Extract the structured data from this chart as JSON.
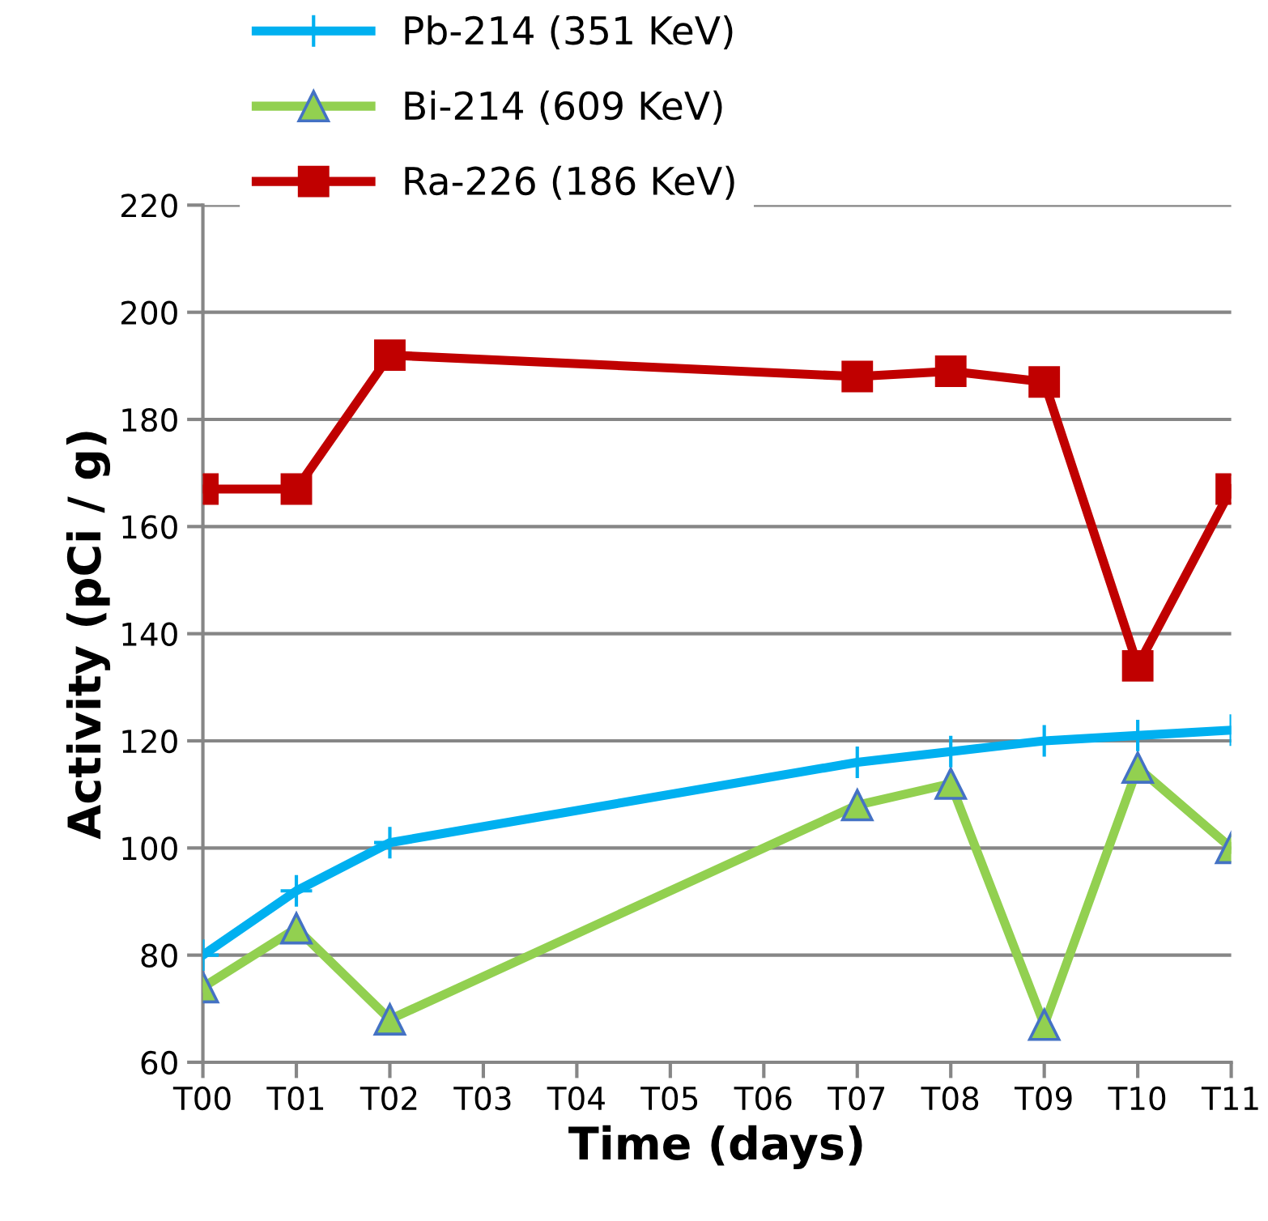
{
  "chart_data": {
    "type": "line",
    "xlabel": "Time (days)",
    "ylabel": "Activity (pCi / g)",
    "categories": [
      "T00",
      "T01",
      "T02",
      "T03",
      "T04",
      "T05",
      "T06",
      "T07",
      "T08",
      "T09",
      "T10",
      "T11"
    ],
    "series": [
      {
        "name": "Pb-214 (351 KeV)",
        "color": "#00b0f0",
        "marker": "cross",
        "values": [
          80,
          92,
          101,
          null,
          null,
          null,
          null,
          116,
          118,
          120,
          121,
          122
        ]
      },
      {
        "name": "Bi-214 (609 KeV)",
        "color": "#92d050",
        "marker": "triangle",
        "values": [
          74,
          85,
          68,
          null,
          null,
          null,
          null,
          108,
          112,
          67,
          115,
          100
        ]
      },
      {
        "name": "Ra-226 (186 KeV)",
        "color": "#c00000",
        "marker": "square",
        "values": [
          167,
          167,
          192,
          null,
          null,
          null,
          null,
          188,
          189,
          187,
          134,
          167
        ]
      }
    ],
    "ylim": [
      60,
      220
    ],
    "yticks": [
      60,
      80,
      100,
      120,
      140,
      160,
      180,
      200,
      220
    ],
    "grid": "y",
    "legend": "top left"
  }
}
